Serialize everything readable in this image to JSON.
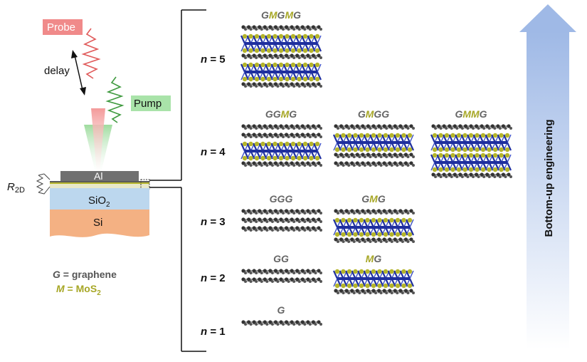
{
  "setup": {
    "probe_label": "Probe",
    "pump_label": "Pump",
    "delay_label": "delay",
    "r2d_symbol": "R",
    "r2d_subscript": "2D",
    "al_label": "Al",
    "sio2_main": "SiO",
    "sio2_sub": "2",
    "si_label": "Si",
    "legend_g_symbol": "G",
    "legend_g_text": " = graphene",
    "legend_m_symbol": "M",
    "legend_m_text": " = MoS",
    "legend_m_sub": "2"
  },
  "arrow_label": "Bottom-up engineering",
  "colors": {
    "graphene_label": "#666666",
    "mos2_label": "#a7a726",
    "probe": "#f07f7f",
    "pump": "#8fd18f",
    "arrow": "#a9c3ea",
    "sio2": "#bcd7ee",
    "si": "#f4b183",
    "al": "#6f6f6f",
    "mo_atom": "#1f2f9e",
    "s_atom": "#b5b52a",
    "c_atom": "#333333"
  },
  "rows": [
    {
      "n_prefix": "n",
      "n_value": " = 5",
      "stacks": [
        {
          "label": [
            "G",
            "M",
            "G",
            "M",
            "G"
          ],
          "layers": "GMGMG"
        }
      ]
    },
    {
      "n_prefix": "n",
      "n_value": " = 4",
      "stacks": [
        {
          "label": [
            "G",
            "G",
            "M",
            "G"
          ],
          "layers": "GGMG"
        },
        {
          "label": [
            "G",
            "M",
            "G",
            "G"
          ],
          "layers": "GMGG"
        },
        {
          "label": [
            "G",
            "M",
            "M",
            "G"
          ],
          "layers": "GMMG"
        }
      ]
    },
    {
      "n_prefix": "n",
      "n_value": " = 3",
      "stacks": [
        {
          "label": [
            "G",
            "G",
            "G"
          ],
          "layers": "GGG"
        },
        {
          "label": [
            "G",
            "M",
            "G"
          ],
          "layers": "GMG"
        }
      ]
    },
    {
      "n_prefix": "n",
      "n_value": " = 2",
      "stacks": [
        {
          "label": [
            "G",
            "G"
          ],
          "layers": "GG"
        },
        {
          "label": [
            "M",
            "G"
          ],
          "layers": "MG"
        }
      ]
    },
    {
      "n_prefix": "n",
      "n_value": " = 1",
      "stacks": [
        {
          "label": [
            "G"
          ],
          "layers": "G"
        }
      ]
    }
  ]
}
